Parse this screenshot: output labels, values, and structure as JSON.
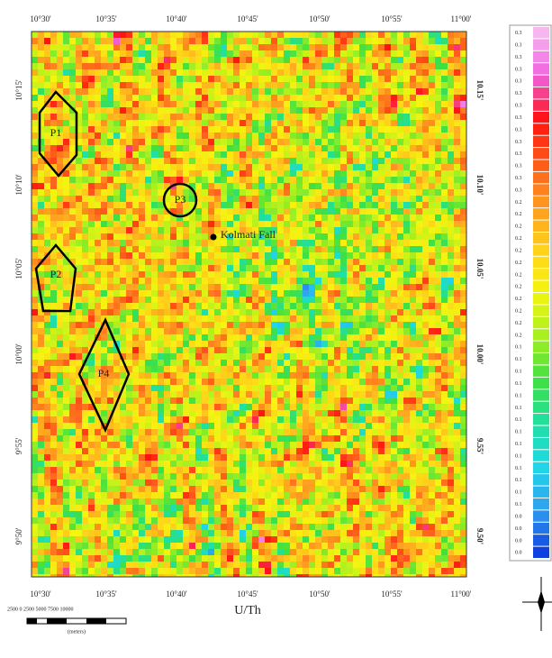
{
  "map": {
    "top_labels": [
      "10°30'",
      "10°35'",
      "10°40'",
      "10°45'",
      "10°50'",
      "10°55'",
      "11°00'"
    ],
    "bottom_labels": [
      "10°30'",
      "10°35'",
      "10°40'",
      "10°45'",
      "10°50'",
      "10°55'",
      "11°00'"
    ],
    "left_labels": [
      "10°15'",
      "10°10'",
      "10°05'",
      "10°00'",
      "9°55'",
      "9°50'"
    ],
    "right_labels": [
      "10.15'",
      "10.10'",
      "10.05'",
      "10.00'",
      "9.55'",
      "9.50'"
    ],
    "zones": [
      "P1",
      "P2",
      "P3",
      "P4"
    ],
    "place": "Kolmati Fall",
    "caption": "U/Th",
    "scale_text": "2500 0 2500 5000 7500 10000",
    "scale_unit": "(meters)",
    "legend": [
      "0.3",
      "0.3",
      "0.3",
      "0.3",
      "0.3",
      "0.3",
      "0.3",
      "0.3",
      "0.3",
      "0.3",
      "0.3",
      "0.3",
      "0.3",
      "0.3",
      "0.2",
      "0.2",
      "0.2",
      "0.2",
      "0.2",
      "0.2",
      "0.2",
      "0.2",
      "0.2",
      "0.2",
      "0.2",
      "0.2",
      "0.1",
      "0.1",
      "0.1",
      "0.1",
      "0.1",
      "0.1",
      "0.1",
      "0.1",
      "0.1",
      "0.1",
      "0.1",
      "0.1",
      "0.1",
      "0.1",
      "0.0",
      "0.0",
      "0.0",
      "0.0"
    ]
  }
}
